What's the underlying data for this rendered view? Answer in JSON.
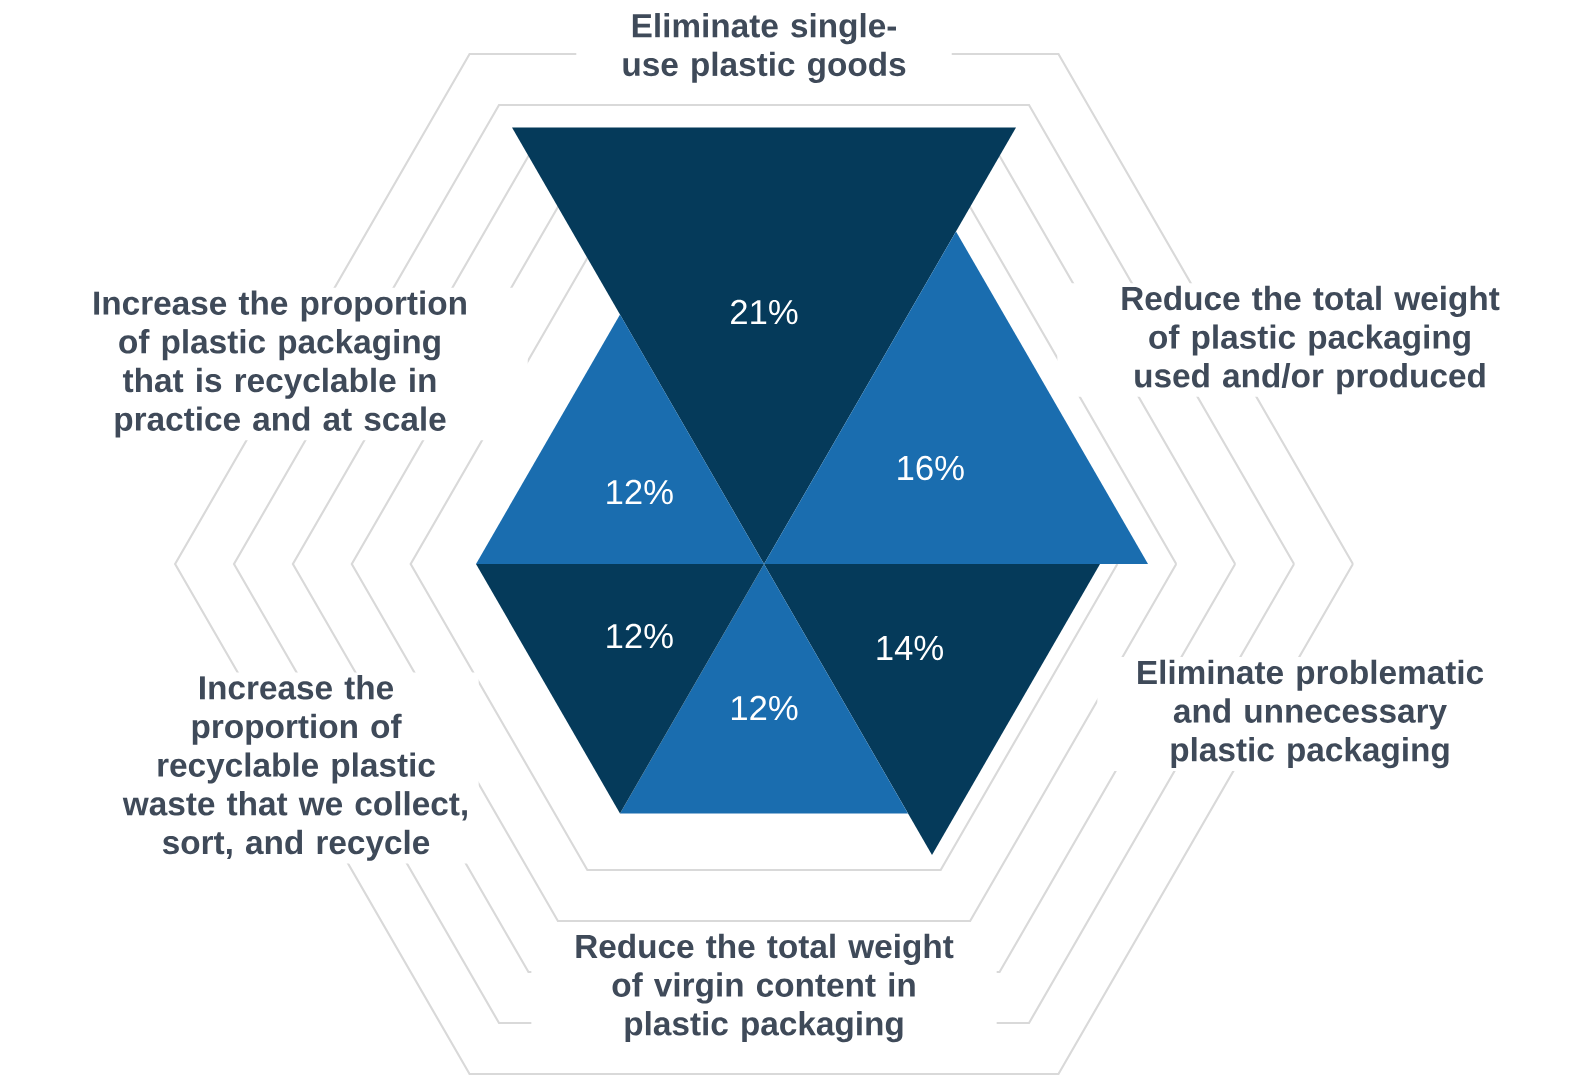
{
  "chart_data": {
    "type": "other",
    "categories": [
      "Eliminate single-use plastic goods",
      "Reduce the total weight of plastic packaging used and/or produced",
      "Eliminate problematic and unnecessary plastic packaging",
      "Reduce the total weight of virgin content in plastic packaging",
      "Increase the proportion of recyclable plastic waste that we collect, sort, and recycle",
      "Increase the proportion of plastic packaging that is recyclable in practice and at scale"
    ],
    "values": [
      21,
      16,
      14,
      12,
      12,
      12
    ],
    "value_labels": [
      "21%",
      "16%",
      "14%",
      "12%",
      "12%",
      "12%"
    ],
    "colors": [
      "#053a5a",
      "#1a6daf",
      "#053a5a",
      "#1a6daf",
      "#053a5a",
      "#1a6daf"
    ]
  }
}
